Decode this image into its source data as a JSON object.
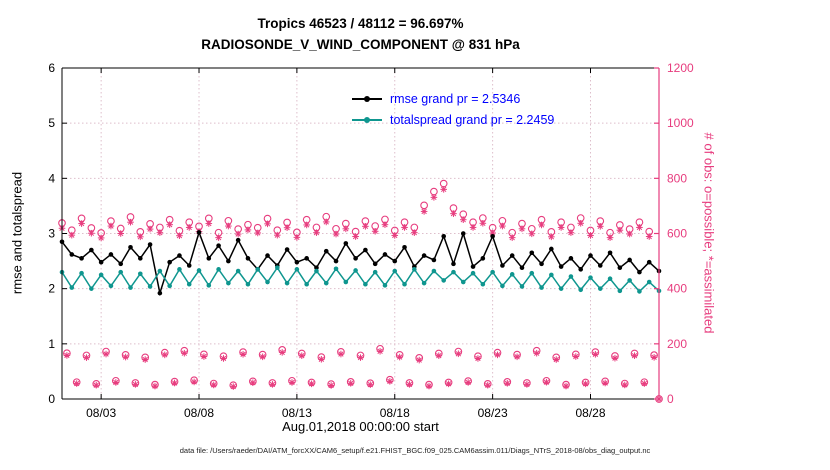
{
  "figure": {
    "title_line1": "Tropics 46523 / 48112 = 96.697%",
    "title_line2": "RADIOSONDE_V_WIND_COMPONENT @ 831 hPa",
    "xlabel": "Aug.01,2018 00:00:00 start",
    "ylabel_left": "rmse and totalspread",
    "ylabel_right": "# of obs: o=possible; *=assimilated",
    "datafile": "data file: /Users/raeder/DAI/ATM_forcXX/CAM6_setup/f.e21.FHIST_BGC.f09_025.CAM6assim.011/Diags_NTrS_2018-08/obs_diag_output.nc",
    "colors": {
      "obs_pink": "#e73c7e",
      "rmse_black": "#000000",
      "spread_teal": "#0f968f",
      "legend_text_blue": "#0000ff",
      "grid": "#debecb"
    }
  },
  "legend": {
    "items": [
      {
        "label": "rmse grand pr = 2.5346",
        "color": "#000000"
      },
      {
        "label": "totalspread grand pr = 2.2459",
        "color": "#0f968f"
      }
    ]
  },
  "chart_data": {
    "type": "line",
    "title": "Tropics 46523 / 48112 = 96.697% | RADIOSONDE_V_WIND_COMPONENT @ 831 hPa",
    "xlabel": "Aug.01,2018 00:00:00 start",
    "ylabel_left": "rmse and totalspread",
    "ylabel_right": "# of obs: o=possible; *=assimilated",
    "ylim_left": [
      0,
      6
    ],
    "ylim_right": [
      0,
      1200
    ],
    "yticks_left": [
      0,
      1,
      2,
      3,
      4,
      5,
      6
    ],
    "yticks_right": [
      0,
      200,
      400,
      600,
      800,
      1000,
      1200
    ],
    "xlim_days": [
      0,
      30.5
    ],
    "xticks": [
      {
        "day": 2,
        "label": "08/03"
      },
      {
        "day": 7,
        "label": "08/08"
      },
      {
        "day": 12,
        "label": "08/13"
      },
      {
        "day": 17,
        "label": "08/18"
      },
      {
        "day": 22,
        "label": "08/23"
      },
      {
        "day": 27,
        "label": "08/28"
      }
    ],
    "grid": true,
    "legend_position": "inside-top",
    "line_series": [
      {
        "name": "rmse",
        "legend": "rmse grand pr = 2.5346",
        "color": "#000000",
        "t_start_day": 0.0,
        "t_step_day": 0.5,
        "values": [
          2.85,
          2.62,
          2.55,
          2.7,
          2.48,
          2.62,
          2.45,
          2.75,
          2.55,
          2.8,
          1.92,
          2.48,
          2.6,
          2.42,
          3.02,
          2.55,
          2.78,
          2.5,
          2.88,
          2.55,
          2.35,
          2.6,
          2.42,
          2.71,
          2.48,
          2.55,
          2.38,
          2.68,
          2.5,
          2.82,
          2.55,
          2.7,
          2.45,
          2.62,
          2.5,
          2.75,
          2.4,
          2.6,
          2.52,
          2.95,
          2.45,
          3.0,
          2.4,
          2.55,
          2.95,
          2.42,
          2.6,
          2.38,
          2.65,
          2.45,
          2.72,
          2.4,
          2.55,
          2.35,
          2.6,
          2.42,
          2.65,
          2.38,
          2.52,
          2.3,
          2.48,
          2.32
        ]
      },
      {
        "name": "totalspread",
        "legend": "totalspread grand pr = 2.2459",
        "color": "#0f968f",
        "t_start_day": 0.0,
        "t_step_day": 0.5,
        "values": [
          2.3,
          2.02,
          2.28,
          2.0,
          2.25,
          2.05,
          2.3,
          2.02,
          2.27,
          2.04,
          2.32,
          2.05,
          2.35,
          2.08,
          2.33,
          2.06,
          2.35,
          2.1,
          2.32,
          2.08,
          2.35,
          2.12,
          2.38,
          2.1,
          2.35,
          2.08,
          2.32,
          2.1,
          2.36,
          2.12,
          2.33,
          2.08,
          2.3,
          2.06,
          2.32,
          2.08,
          2.35,
          2.1,
          2.32,
          2.15,
          2.3,
          2.12,
          2.28,
          2.08,
          2.3,
          2.05,
          2.26,
          2.04,
          2.28,
          2.02,
          2.25,
          2.0,
          2.22,
          1.98,
          2.2,
          2.0,
          2.18,
          1.96,
          2.15,
          1.95,
          2.12,
          1.96
        ]
      }
    ],
    "obs_series": [
      {
        "name": "possible-synoptic",
        "marker": "circle",
        "axis": "right",
        "t_start_day": 0.0,
        "t_step_day": 0.5,
        "values": [
          638,
          612,
          655,
          620,
          602,
          645,
          618,
          660,
          606,
          635,
          622,
          650,
          610,
          641,
          626,
          655,
          603,
          646,
          616,
          632,
          621,
          654,
          612,
          640,
          604,
          650,
          622,
          661,
          617,
          636,
          607,
          645,
          627,
          651,
          611,
          641,
          622,
          702,
          752,
          781,
          692,
          670,
          641,
          656,
          621,
          646,
          603,
          636,
          617,
          650,
          606,
          641,
          622,
          656,
          611,
          645,
          603,
          631,
          616,
          641,
          607,
          0
        ]
      },
      {
        "name": "assimilated-synoptic",
        "marker": "asterisk",
        "axis": "right",
        "t_start_day": 0.0,
        "t_step_day": 0.5,
        "values": [
          619,
          594,
          636,
          601,
          584,
          627,
          600,
          641,
          588,
          616,
          603,
          632,
          592,
          622,
          607,
          636,
          585,
          627,
          598,
          613,
          602,
          635,
          594,
          621,
          586,
          631,
          603,
          642,
          598,
          617,
          589,
          626,
          608,
          632,
          593,
          622,
          603,
          680,
          731,
          760,
          672,
          650,
          622,
          637,
          602,
          627,
          585,
          617,
          599,
          631,
          588,
          622,
          603,
          637,
          593,
          626,
          585,
          612,
          598,
          622,
          589,
          0
        ]
      },
      {
        "name": "possible-06z",
        "marker": "circle",
        "axis": "right",
        "t_start_day": 0.25,
        "t_step_day": 1.0,
        "values": [
          166,
          158,
          172,
          160,
          151,
          168,
          175,
          162,
          155,
          170,
          161,
          178,
          165,
          152,
          171,
          158,
          182,
          160,
          149,
          165,
          172,
          155,
          168,
          161,
          175,
          151,
          162,
          170,
          156,
          165,
          159
        ]
      },
      {
        "name": "assimilated-06z",
        "marker": "asterisk",
        "axis": "right",
        "t_start_day": 0.25,
        "t_step_day": 1.0,
        "values": [
          158,
          150,
          163,
          152,
          143,
          160,
          166,
          154,
          147,
          162,
          153,
          169,
          157,
          144,
          163,
          150,
          173,
          152,
          141,
          157,
          164,
          147,
          160,
          153,
          166,
          143,
          154,
          162,
          148,
          157,
          151
        ]
      },
      {
        "name": "possible-18z",
        "marker": "circle",
        "axis": "right",
        "t_start_day": 0.75,
        "t_step_day": 1.0,
        "values": [
          61,
          55,
          66,
          58,
          52,
          63,
          68,
          56,
          50,
          64,
          58,
          66,
          60,
          54,
          62,
          57,
          70,
          58,
          52,
          60,
          65,
          55,
          62,
          58,
          66,
          52,
          60,
          64,
          56,
          61
        ]
      },
      {
        "name": "assimilated-18z",
        "marker": "asterisk",
        "axis": "right",
        "t_start_day": 0.75,
        "t_step_day": 1.0,
        "values": [
          56,
          50,
          60,
          53,
          47,
          58,
          62,
          51,
          45,
          59,
          53,
          60,
          55,
          49,
          57,
          52,
          64,
          53,
          47,
          55,
          60,
          50,
          57,
          53,
          61,
          47,
          55,
          58,
          51,
          56
        ]
      }
    ]
  }
}
